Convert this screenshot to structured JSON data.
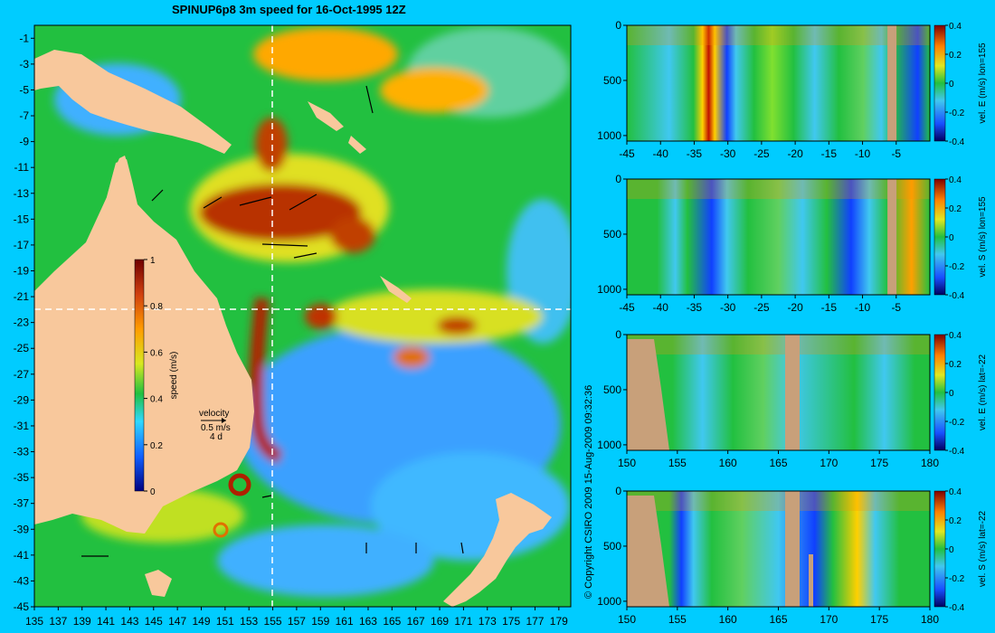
{
  "title": "SPINUP6p8 3m speed for 16-Oct-1995 12Z",
  "copyright": "© Copyright CSIRO 2009   15-Aug-2009 09:32:36",
  "colors": {
    "background": "#00ccff",
    "land": "#f8c89c",
    "section_land": "#c8a07a"
  },
  "legend": {
    "label": "speed (m/s)",
    "ticks": [
      "0",
      "0.2",
      "0.4",
      "0.6",
      "0.8",
      "1"
    ]
  },
  "velocity_key": {
    "title": "velocity",
    "scale": "0.5 m/s",
    "period": "4 d"
  },
  "chart_data": [
    {
      "type": "heatmap",
      "title": "SPINUP6p8 3m speed for 16-Oct-1995 12Z",
      "x": [
        135,
        137,
        139,
        141,
        143,
        145,
        147,
        149,
        151,
        153,
        155,
        157,
        159,
        161,
        163,
        165,
        167,
        169,
        171,
        173,
        175,
        177,
        179
      ],
      "y": [
        -1,
        -3,
        -5,
        -7,
        -9,
        -11,
        -13,
        -15,
        -17,
        -19,
        -21,
        -23,
        -25,
        -27,
        -29,
        -31,
        -33,
        -35,
        -37,
        -39,
        -41,
        -43,
        -45
      ],
      "xlim": [
        135,
        180
      ],
      "ylim": [
        -45,
        0
      ],
      "colorbar": {
        "label": "speed (m/s)",
        "range": [
          0,
          1
        ]
      },
      "section_lines": {
        "lon": 155,
        "lat": -22
      }
    },
    {
      "type": "heatmap",
      "ylabel": "vel. E (m/s) lon=155",
      "x": [
        -45,
        -40,
        -35,
        -30,
        -25,
        -20,
        -15,
        -10,
        -5
      ],
      "y": [
        0,
        500,
        1000
      ],
      "xlim": [
        -45,
        0
      ],
      "ylim": [
        1050,
        0
      ],
      "colorbar": {
        "range": [
          -0.4,
          0.4
        ],
        "ticks": [
          "-0.4",
          "-0.2",
          "0",
          "0.2",
          "0.4"
        ]
      }
    },
    {
      "type": "heatmap",
      "ylabel": "vel. S (m/s) lon=155",
      "x": [
        -45,
        -40,
        -35,
        -30,
        -25,
        -20,
        -15,
        -10,
        -5
      ],
      "y": [
        0,
        500,
        1000
      ],
      "xlim": [
        -45,
        0
      ],
      "ylim": [
        1050,
        0
      ],
      "colorbar": {
        "range": [
          -0.4,
          0.4
        ],
        "ticks": [
          "-0.4",
          "-0.2",
          "0",
          "0.2",
          "0.4"
        ]
      }
    },
    {
      "type": "heatmap",
      "ylabel": "vel. E (m/s) lat=-22",
      "x": [
        150,
        155,
        160,
        165,
        170,
        175,
        180
      ],
      "y": [
        0,
        500,
        1000
      ],
      "xlim": [
        150,
        180
      ],
      "ylim": [
        1050,
        0
      ],
      "colorbar": {
        "range": [
          -0.4,
          0.4
        ],
        "ticks": [
          "-0.4",
          "-0.2",
          "0",
          "0.2",
          "0.4"
        ]
      }
    },
    {
      "type": "heatmap",
      "ylabel": "vel. S (m/s) lat=-22",
      "x": [
        150,
        155,
        160,
        165,
        170,
        175,
        180
      ],
      "y": [
        0,
        500,
        1000
      ],
      "xlim": [
        150,
        180
      ],
      "ylim": [
        1050,
        0
      ],
      "colorbar": {
        "range": [
          -0.4,
          0.4
        ],
        "ticks": [
          "-0.4",
          "-0.2",
          "0",
          "0.2",
          "0.4"
        ]
      }
    }
  ]
}
